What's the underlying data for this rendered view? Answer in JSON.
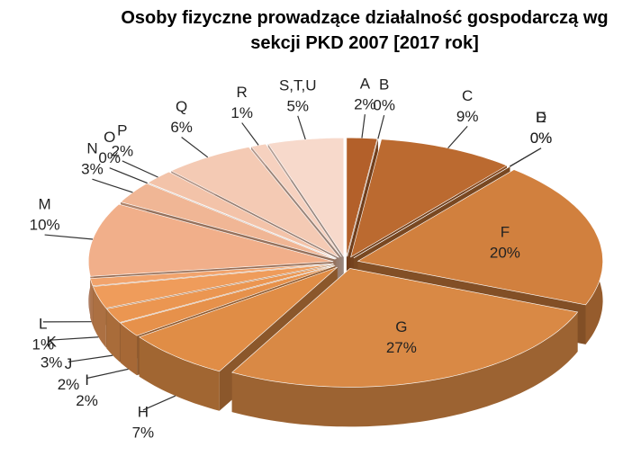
{
  "chart_data": {
    "type": "pie3d",
    "title": "Osoby fizyczne prowadzące działalność gospodarczą wg sekcji PKD 2007 [2017 rok]",
    "categories": [
      "A",
      "B",
      "C",
      "D",
      "E",
      "F",
      "G",
      "H",
      "I",
      "J",
      "K",
      "L",
      "M",
      "N",
      "O",
      "P",
      "Q",
      "R",
      "S,T,U"
    ],
    "values": [
      2,
      0,
      9,
      0,
      0,
      20,
      27,
      7,
      2,
      2,
      3,
      1,
      10,
      3,
      0,
      2,
      6,
      1,
      5
    ],
    "value_labels": [
      "2%",
      "0%",
      "9%",
      "0%",
      "0%",
      "20%",
      "27%",
      "7%",
      "2%",
      "2%",
      "3%",
      "1%",
      "10%",
      "3%",
      "0%",
      "2%",
      "6%",
      "1%",
      "5%"
    ],
    "colors": [
      "#b3602a",
      "#b6642c",
      "#bb6a30",
      "#bf6f33",
      "#c37436",
      "#d1803e",
      "#d98945",
      "#e08d46",
      "#e6914b",
      "#eb9651",
      "#ef9c5b",
      "#f1a36c",
      "#f1af8a",
      "#f0b695",
      "#f1bc9f",
      "#f3c3a9",
      "#f4cab4",
      "#f6d1bf",
      "#f7d9cb"
    ]
  }
}
